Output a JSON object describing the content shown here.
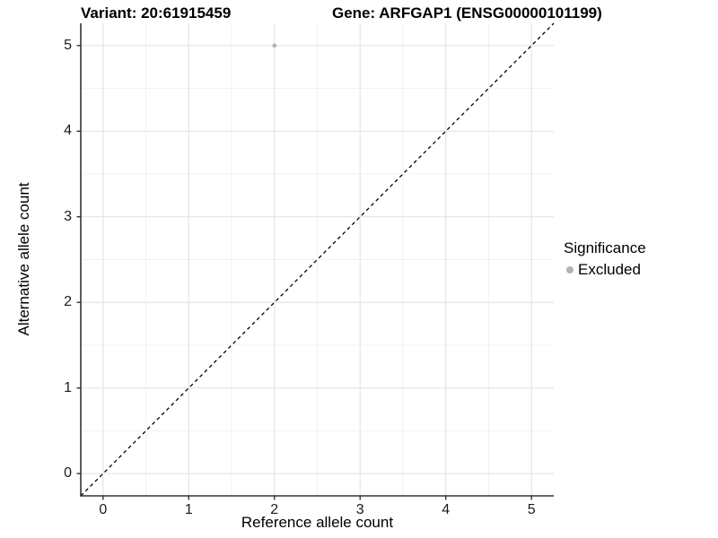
{
  "titles": {
    "variant": "Variant: 20:61915459",
    "gene": "Gene: ARFGAP1 (ENSG00000101199)"
  },
  "axes": {
    "x": {
      "label": "Reference allele count",
      "tick_labels": [
        "0",
        "1",
        "2",
        "3",
        "4",
        "5"
      ]
    },
    "y": {
      "label": "Alternative allele count",
      "tick_labels": [
        "0",
        "1",
        "2",
        "3",
        "4",
        "5"
      ]
    }
  },
  "legend": {
    "title": "Significance",
    "items": [
      {
        "label": "Excluded",
        "color": "#b3b3b3"
      }
    ]
  },
  "colors": {
    "background": "#ffffff",
    "grid_major": "#e4e4e4",
    "grid_minor": "#f0f0f0",
    "axis_line": "#333333",
    "tick_mark": "#333333",
    "diagonal_line": "#000000",
    "excluded_point": "#b3b3b3",
    "text": "#000000"
  },
  "chart_data": {
    "type": "scatter",
    "title": "Variant: 20:61915459 | Gene: ARFGAP1 (ENSG00000101199)",
    "xlabel": "Reference allele count",
    "ylabel": "Alternative allele count",
    "xlim": [
      -0.26,
      5.26
    ],
    "ylim": [
      -0.26,
      5.26
    ],
    "x_ticks": [
      0,
      1,
      2,
      3,
      4,
      5
    ],
    "y_ticks": [
      0,
      1,
      2,
      3,
      4,
      5
    ],
    "grid": "major and minor, light grey on white",
    "legend_position": "right",
    "series": [
      {
        "name": "Excluded",
        "color": "#b3b3b3",
        "marker": "circle",
        "points": [
          {
            "x": 2,
            "y": 5
          }
        ]
      }
    ],
    "reference_line": {
      "type": "identity y=x",
      "style": "dashed",
      "color": "#000000"
    }
  }
}
